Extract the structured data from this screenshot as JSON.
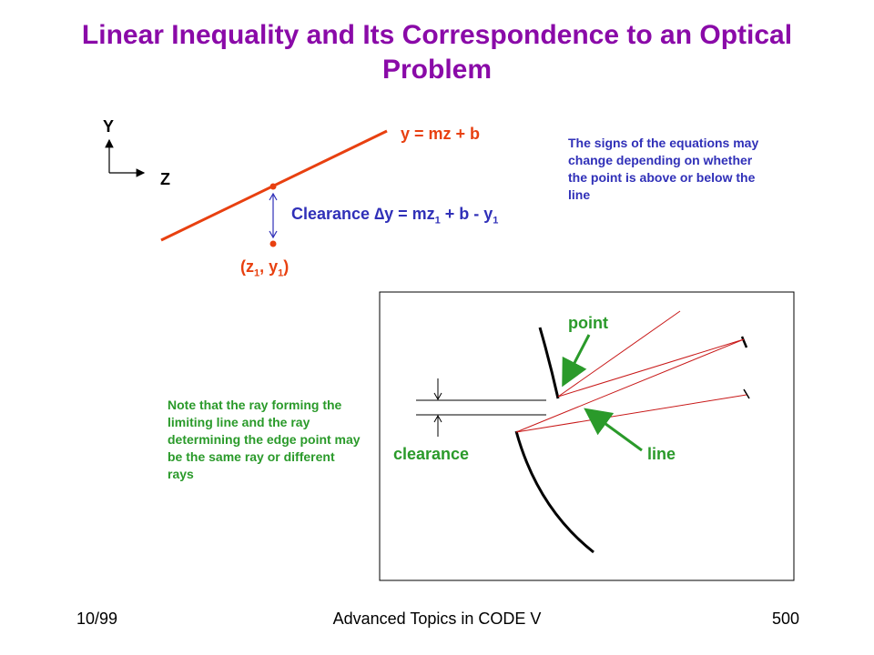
{
  "title": "Linear Inequality and Its Correspondence to an Optical Problem",
  "colors": {
    "title": "#8a0aa8",
    "line": "#e84010",
    "blue": "#3030b8",
    "green": "#2a9a2a",
    "ray": "#c81818"
  },
  "axes": {
    "y_label": "Y",
    "z_label": "Z"
  },
  "line_diagram": {
    "equation": "y = mz + b",
    "clearance_prefix": "Clearance ",
    "delta": "∆",
    "clearance_y": "y = mz",
    "sub1": "1",
    "clearance_mid": " + b - y",
    "sub2": "1",
    "point_open": "(z",
    "point_sub1": "1",
    "point_mid": ", y",
    "point_sub2": "1",
    "point_close": ")"
  },
  "sign_note": "The signs of the equations may change depending on whether the point is above or below the line",
  "ray_note": "Note that the ray forming the limiting line and the ray determining the edge point may be the same ray or different rays",
  "optical_diagram": {
    "point_label": "point",
    "line_label": "line",
    "clearance_label": "clearance"
  },
  "footer": {
    "date": "10/99",
    "course": "Advanced Topics in CODE V",
    "page": "500"
  }
}
